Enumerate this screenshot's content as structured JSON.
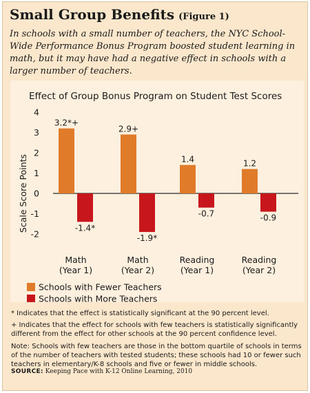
{
  "header": {
    "title": "Small Group Benefits",
    "figure_label": "(Figure 1)",
    "subtitle": "In schools with a small number of teachers, the NYC School-Wide Performance Bonus Program boosted student learning in math, but it may have had a negative effect in schools with a larger number of teachers."
  },
  "chart_data": {
    "type": "bar",
    "title": "Effect of Group Bonus Program on Student Test Scores",
    "xlabel": "",
    "ylabel": "Scale Score Points",
    "ylim": [
      -2,
      4
    ],
    "yticks": [
      4,
      3,
      2,
      1,
      0,
      -1,
      -2
    ],
    "grid": false,
    "legend_position": "bottom-left",
    "categories": [
      [
        "Math",
        "(Year 1)"
      ],
      [
        "Math",
        "(Year 2)"
      ],
      [
        "Reading",
        "(Year 1)"
      ],
      [
        "Reading",
        "(Year 2)"
      ]
    ],
    "series": [
      {
        "name": "Schools with Fewer Teachers",
        "color": "#e07b2a",
        "values": [
          3.2,
          2.9,
          1.4,
          1.2
        ],
        "labels": [
          "3.2*+",
          "2.9+",
          "1.4",
          "1.2"
        ]
      },
      {
        "name": "Schools with More Teachers",
        "color": "#c8161d",
        "values": [
          -1.4,
          -1.9,
          -0.7,
          -0.9
        ],
        "labels": [
          "-1.4*",
          "-1.9*",
          "-0.7",
          "-0.9"
        ]
      }
    ]
  },
  "footnotes": {
    "significance": "* Indicates that the effect is statistically significant at the 90 percent level.",
    "difference": "+ Indicates that the effect for schools with few teachers is statistically significantly different from the effect for other schools at the 90 percent confidence level.",
    "note": "Note: Schools with few teachers are those in the bottom quartile of schools in terms of the number of teachers with tested students; these schools had 10 or fewer such teachers in elementary/K-8 schools and five or fewer in middle schools.",
    "source_label": "SOURCE:",
    "source_text": "Keeping Pace with K-12 Online Learning, 2010"
  }
}
